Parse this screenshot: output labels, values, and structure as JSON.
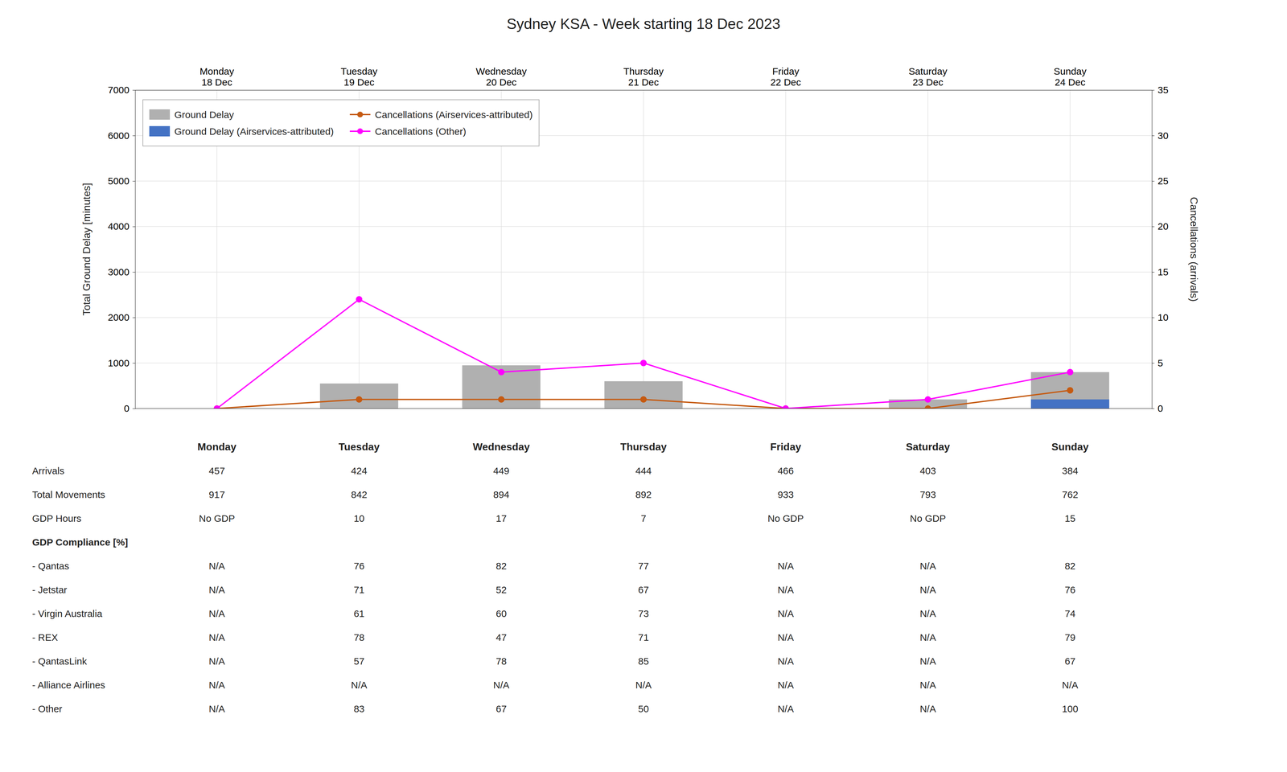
{
  "chart_data": {
    "type": "bar",
    "title": "Sydney KSA - Week starting 18 Dec 2023",
    "categories": [
      "Monday\n18 Dec",
      "Tuesday\n19 Dec",
      "Wednesday\n20 Dec",
      "Thursday\n21 Dec",
      "Friday\n22 Dec",
      "Saturday\n23 Dec",
      "Sunday\n24 Dec"
    ],
    "series": [
      {
        "name": "Ground Delay",
        "type": "bar",
        "color": "#b0b0b0",
        "values": [
          0,
          550,
          950,
          600,
          0,
          200,
          800
        ]
      },
      {
        "name": "Ground Delay (Airservices-attributed)",
        "type": "bar",
        "color": "#4472c4",
        "values": [
          0,
          0,
          0,
          0,
          0,
          0,
          200
        ]
      },
      {
        "name": "Cancellations (Airservices-attributed)",
        "type": "line",
        "axis": "y2",
        "marker": "circle",
        "color": "#c55a11",
        "values": [
          0,
          1,
          1,
          1,
          0,
          0,
          2
        ]
      },
      {
        "name": "Cancellations (Other)",
        "type": "line",
        "axis": "y2",
        "marker": "circle",
        "color": "#ff00ff",
        "values": [
          0,
          12,
          4,
          5,
          0,
          1,
          4
        ]
      }
    ],
    "ylabel": "Total Ground Delay [minutes]",
    "y2label": "Cancellations (arrivals)",
    "ylim": [
      0,
      7000
    ],
    "yticks": [
      0,
      1000,
      2000,
      3000,
      4000,
      5000,
      6000,
      7000
    ],
    "y2lim": [
      0,
      35
    ],
    "y2ticks": [
      0,
      5,
      10,
      15,
      20,
      25,
      30,
      35
    ],
    "grid": true,
    "legend": "upper left",
    "table": {
      "columns": [
        "Monday",
        "Tuesday",
        "Wednesday",
        "Thursday",
        "Friday",
        "Saturday",
        "Sunday"
      ],
      "rows": [
        {
          "label": "Arrivals",
          "values": [
            "457",
            "424",
            "449",
            "444",
            "466",
            "403",
            "384"
          ]
        },
        {
          "label": "Total Movements",
          "values": [
            "917",
            "842",
            "894",
            "892",
            "933",
            "793",
            "762"
          ]
        },
        {
          "label": "GDP Hours",
          "values": [
            "No GDP",
            "10",
            "17",
            "7",
            "No GDP",
            "No GDP",
            "15"
          ]
        },
        {
          "label": "GDP Compliance [%]"
        },
        {
          "label": "- Qantas",
          "values": [
            "N/A",
            "76",
            "82",
            "77",
            "N/A",
            "N/A",
            "82"
          ]
        },
        {
          "label": "- Jetstar",
          "values": [
            "N/A",
            "71",
            "52",
            "67",
            "N/A",
            "N/A",
            "76"
          ]
        },
        {
          "label": "- Virgin Australia",
          "values": [
            "N/A",
            "61",
            "60",
            "73",
            "N/A",
            "N/A",
            "74"
          ]
        },
        {
          "label": "- REX",
          "values": [
            "N/A",
            "78",
            "47",
            "71",
            "N/A",
            "N/A",
            "79"
          ]
        },
        {
          "label": "- QantasLink",
          "values": [
            "N/A",
            "57",
            "78",
            "85",
            "N/A",
            "N/A",
            "67"
          ]
        },
        {
          "label": "- Alliance Airlines",
          "values": [
            "N/A",
            "N/A",
            "N/A",
            "N/A",
            "N/A",
            "N/A",
            "N/A"
          ]
        },
        {
          "label": "- Other",
          "values": [
            "N/A",
            "83",
            "67",
            "50",
            "N/A",
            "N/A",
            "100"
          ]
        }
      ]
    }
  }
}
